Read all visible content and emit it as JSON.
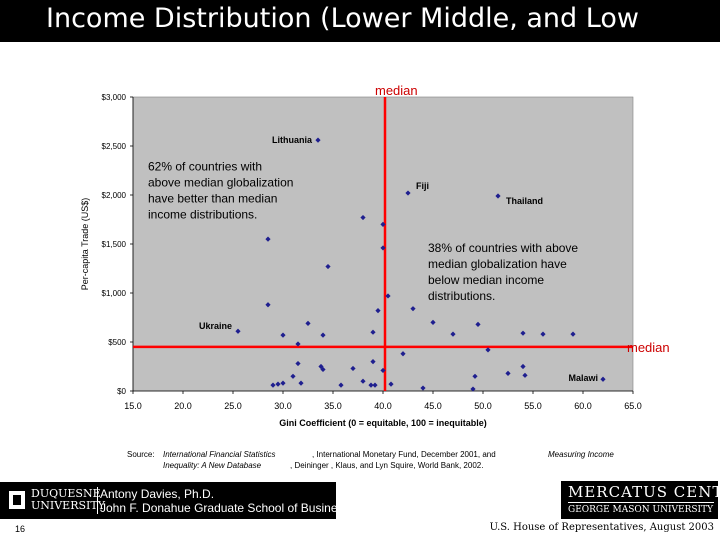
{
  "slide": {
    "title": "Income Distribution (Lower Middle, and Low",
    "page_number": "16",
    "footer_credit": "U.S. House of Representatives, August 2003"
  },
  "source": {
    "label": "Source:",
    "ref1_title": "International Financial Statistics",
    "ref1_rest": ", International Monetary Fund, December 2001, and",
    "ref1_extra": "Measuring Income",
    "ref2_title": "Inequality: A New Database",
    "ref2_rest": ", Deininger , Klaus, and Lyn Squire, World Bank, 2002."
  },
  "branding": {
    "university_line1": "DUQUESNE",
    "university_line2": "UNIVERSITY",
    "author_name": "Antony Davies, Ph.D.",
    "school": "John F. Donahue Graduate School of Business",
    "center_name": "MERCATUS CENTER",
    "center_sub": "GEORGE MASON UNIVERSITY"
  },
  "colors": {
    "marker": "#1f1f8f",
    "median_line": "#ff0000",
    "plot_bg": "#c0c0c0",
    "median_text": "#cc0000"
  },
  "chart_data": {
    "type": "scatter",
    "xlabel": "Gini Coefficient (0 = equitable, 100 = inequitable)",
    "ylabel": "Per-capita Trade (US$)",
    "xlim": [
      15,
      65
    ],
    "ylim": [
      0,
      3000
    ],
    "x_ticks": [
      "15.0",
      "20.0",
      "25.0",
      "30.0",
      "35.0",
      "40.0",
      "45.0",
      "50.0",
      "55.0",
      "60.0",
      "65.0"
    ],
    "y_ticks": [
      "$0",
      "$500",
      "$1,000",
      "$1,500",
      "$2,000",
      "$2,500",
      "$3,000"
    ],
    "grid": false,
    "median_x": 40.2,
    "median_y": 450,
    "median_label_vertical": "median",
    "median_label_horizontal": "median",
    "points": [
      {
        "x": 33.5,
        "y": 2560,
        "label": "Lithuania"
      },
      {
        "x": 42.5,
        "y": 2020,
        "label": "Fiji"
      },
      {
        "x": 51.5,
        "y": 1990,
        "label": "Thailand"
      },
      {
        "x": 25.5,
        "y": 610,
        "label": "Ukraine"
      },
      {
        "x": 62.0,
        "y": 120,
        "label": "Malawi"
      },
      {
        "x": 28.5,
        "y": 1550
      },
      {
        "x": 28.5,
        "y": 880
      },
      {
        "x": 30.0,
        "y": 570
      },
      {
        "x": 31.5,
        "y": 480
      },
      {
        "x": 32.5,
        "y": 690
      },
      {
        "x": 34.0,
        "y": 570
      },
      {
        "x": 34.5,
        "y": 1270
      },
      {
        "x": 38.0,
        "y": 1770
      },
      {
        "x": 40.0,
        "y": 1700
      },
      {
        "x": 40.0,
        "y": 1460
      },
      {
        "x": 40.5,
        "y": 970
      },
      {
        "x": 39.5,
        "y": 820
      },
      {
        "x": 39.0,
        "y": 600
      },
      {
        "x": 43.0,
        "y": 840
      },
      {
        "x": 45.0,
        "y": 700
      },
      {
        "x": 49.5,
        "y": 680
      },
      {
        "x": 47.0,
        "y": 580
      },
      {
        "x": 54.0,
        "y": 590
      },
      {
        "x": 56.0,
        "y": 580
      },
      {
        "x": 59.0,
        "y": 580
      },
      {
        "x": 29.0,
        "y": 60
      },
      {
        "x": 29.5,
        "y": 70
      },
      {
        "x": 30.0,
        "y": 80
      },
      {
        "x": 31.0,
        "y": 150
      },
      {
        "x": 31.5,
        "y": 280
      },
      {
        "x": 31.8,
        "y": 80
      },
      {
        "x": 33.8,
        "y": 250
      },
      {
        "x": 34.0,
        "y": 220
      },
      {
        "x": 35.8,
        "y": 60
      },
      {
        "x": 37.0,
        "y": 230
      },
      {
        "x": 38.0,
        "y": 100
      },
      {
        "x": 39.0,
        "y": 300
      },
      {
        "x": 38.8,
        "y": 60
      },
      {
        "x": 39.2,
        "y": 60
      },
      {
        "x": 40.0,
        "y": 210
      },
      {
        "x": 40.8,
        "y": 70
      },
      {
        "x": 42.0,
        "y": 380
      },
      {
        "x": 44.0,
        "y": 30
      },
      {
        "x": 49.0,
        "y": 20
      },
      {
        "x": 49.2,
        "y": 150
      },
      {
        "x": 50.5,
        "y": 420
      },
      {
        "x": 52.5,
        "y": 180
      },
      {
        "x": 54.0,
        "y": 250
      },
      {
        "x": 54.2,
        "y": 160
      }
    ],
    "annotations": [
      {
        "x": 16.5,
        "y": 2250,
        "lines": [
          "62% of countries with",
          "above median globalization",
          "have better than median",
          "income distributions."
        ]
      },
      {
        "x": 44.5,
        "y": 1420,
        "lines": [
          "38% of countries with above",
          "median globalization have",
          "below median income",
          "distributions."
        ]
      }
    ]
  }
}
